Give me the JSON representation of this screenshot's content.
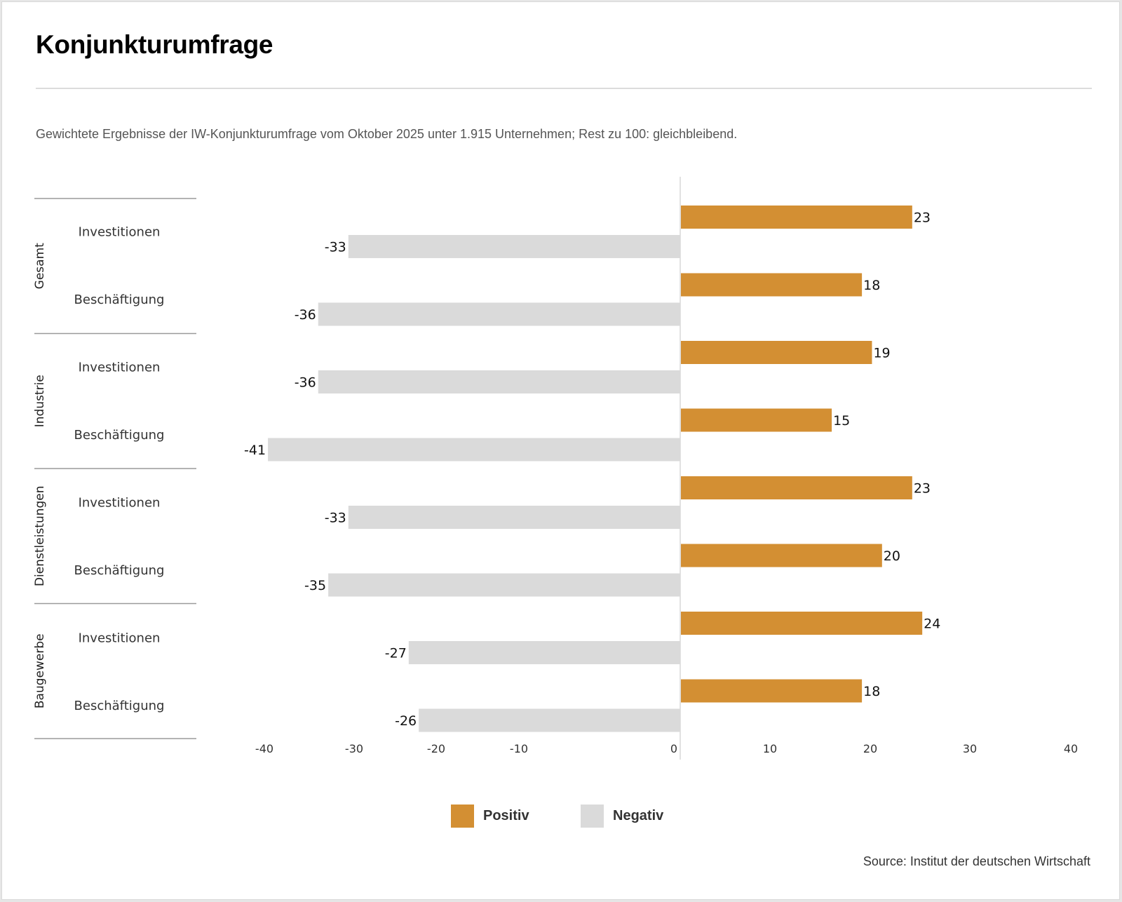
{
  "header": {
    "title": "Konjunkturumfrage",
    "subtitle": "Gewichtete Ergebnisse der IW-Konjunkturumfrage vom Oktober 2025 unter 1.915 Unternehmen; Rest zu 100: gleichbleibend."
  },
  "footer": {
    "source": "Source: Institut der deutschen Wirtschaft"
  },
  "legend": {
    "items": [
      {
        "label": "Positiv",
        "color": "#d38f33"
      },
      {
        "label": "Negativ",
        "color": "#dadada"
      }
    ]
  },
  "chart_data": {
    "type": "bar",
    "orientation": "horizontal",
    "title": "Konjunkturumfrage",
    "xlabel": "",
    "ylabel": "",
    "xlim": [
      -40,
      40
    ],
    "x_ticks": [
      "-40",
      "-30",
      "-20",
      "-10",
      "0",
      "10",
      "20",
      "30",
      "40"
    ],
    "grid": false,
    "legend_position": "bottom",
    "groups": [
      {
        "name": "Gesamt",
        "rows": [
          "Investitionen",
          "Beschäftigung"
        ]
      },
      {
        "name": "Industrie",
        "rows": [
          "Investitionen",
          "Beschäftigung"
        ]
      },
      {
        "name": "Dienstleistungen",
        "rows": [
          "Investitionen",
          "Beschäftigung"
        ]
      },
      {
        "name": "Baugewerbe",
        "rows": [
          "Investitionen",
          "Beschäftigung"
        ]
      }
    ],
    "categories": [
      "Gesamt – Investitionen",
      "Gesamt – Beschäftigung",
      "Industrie – Investitionen",
      "Industrie – Beschäftigung",
      "Dienstleistungen – Investitionen",
      "Dienstleistungen – Beschäftigung",
      "Baugewerbe – Investitionen",
      "Baugewerbe – Beschäftigung"
    ],
    "series": [
      {
        "name": "Positiv",
        "color": "#d38f33",
        "values": [
          23,
          18,
          19,
          15,
          23,
          20,
          24,
          18
        ]
      },
      {
        "name": "Negativ",
        "color": "#dadada",
        "values": [
          -33,
          -36,
          -36,
          -41,
          -33,
          -35,
          -27,
          -26
        ]
      }
    ]
  }
}
